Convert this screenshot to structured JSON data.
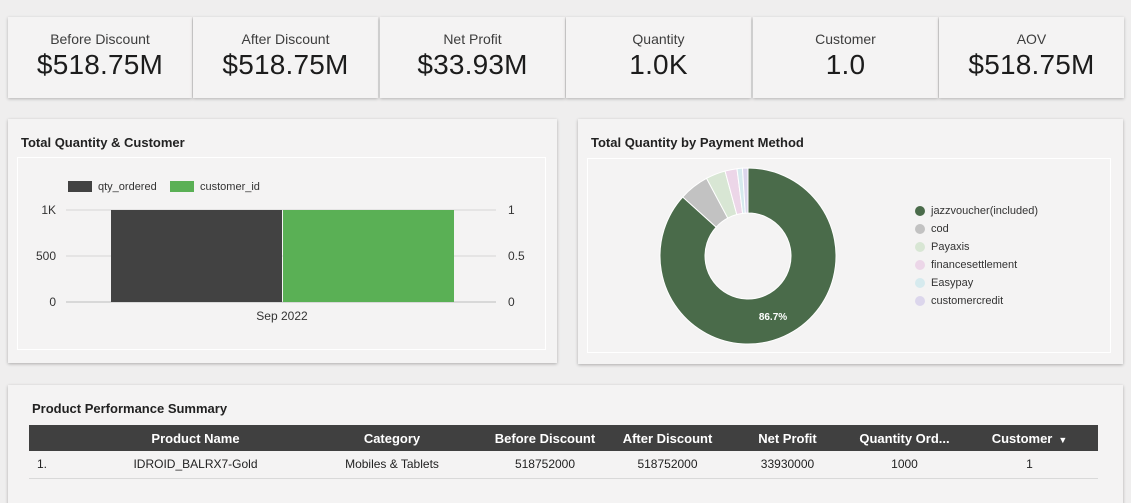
{
  "kpis": [
    {
      "label": "Before Discount",
      "value": "$518.75M"
    },
    {
      "label": "After Discount",
      "value": "$518.75M"
    },
    {
      "label": "Net Profit",
      "value": "$33.93M"
    },
    {
      "label": "Quantity",
      "value": "1.0K"
    },
    {
      "label": "Customer",
      "value": "1.0"
    },
    {
      "label": "AOV",
      "value": "$518.75M"
    }
  ],
  "bar_panel": {
    "title": "Total Quantity & Customer",
    "legend": [
      "qty_ordered",
      "customer_id"
    ],
    "colors": [
      "#424242",
      "#5ab055"
    ],
    "left_ticks": [
      "1K",
      "500",
      "0"
    ],
    "right_ticks": [
      "1",
      "0.5",
      "0"
    ],
    "x_label": "Sep 2022"
  },
  "donut_panel": {
    "title": "Total Quantity by Payment Method",
    "center_label": "86.7%",
    "legend": [
      {
        "label": "jazzvoucher(included)",
        "color": "#4a6b4a"
      },
      {
        "label": "cod",
        "color": "#c2c2c2"
      },
      {
        "label": "Payaxis",
        "color": "#d8e6d4"
      },
      {
        "label": "financesettlement",
        "color": "#ecd6e8"
      },
      {
        "label": "Easypay",
        "color": "#d6eaee"
      },
      {
        "label": "customercredit",
        "color": "#dcd6ec"
      }
    ]
  },
  "chart_data": [
    {
      "type": "bar",
      "title": "Total Quantity & Customer",
      "categories": [
        "Sep 2022"
      ],
      "series": [
        {
          "name": "qty_ordered",
          "values": [
            1000
          ],
          "axis": "left"
        },
        {
          "name": "customer_id",
          "values": [
            1
          ],
          "axis": "right"
        }
      ],
      "ylim_left": [
        0,
        1000
      ],
      "ylim_right": [
        0,
        1
      ]
    },
    {
      "type": "pie",
      "title": "Total Quantity by Payment Method",
      "categories": [
        "jazzvoucher(included)",
        "cod",
        "Payaxis",
        "financesettlement",
        "Easypay",
        "customercredit"
      ],
      "values": [
        86.7,
        5.5,
        3.6,
        2.2,
        1.0,
        1.0
      ]
    }
  ],
  "table": {
    "title": "Product Performance Summary",
    "columns": [
      "",
      "Product Name",
      "Category",
      "Before Discount",
      "After Discount",
      "Net Profit",
      "Quantity Ord...",
      "Customer"
    ],
    "sort_indicator": "▼",
    "rows": [
      [
        "1.",
        "IDROID_BALRX7-Gold",
        "Mobiles & Tablets",
        "518752000",
        "518752000",
        "33930000",
        "1000",
        "1"
      ]
    ]
  }
}
